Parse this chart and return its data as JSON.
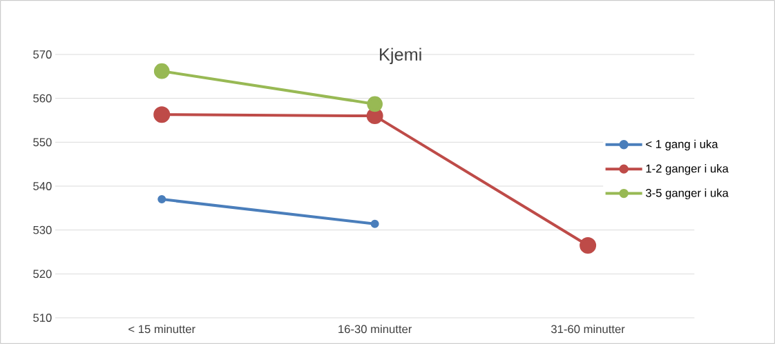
{
  "chart_data": {
    "type": "line",
    "title": "Kjemi",
    "categories": [
      "< 15 minutter",
      "16-30 minutter",
      "31-60 minutter"
    ],
    "series": [
      {
        "name": "< 1 gang i uka",
        "color": "#4a7ebb",
        "values": [
          537.0,
          531.4,
          null
        ]
      },
      {
        "name": "1-2 ganger i uka",
        "color": "#be4b48",
        "values": [
          556.3,
          556.0,
          526.5
        ]
      },
      {
        "name": "3-5 ganger i uka",
        "color": "#98b954",
        "values": [
          566.2,
          558.7,
          null
        ]
      }
    ],
    "ylim": [
      510,
      570
    ],
    "yticks": [
      510,
      520,
      530,
      540,
      550,
      560,
      570
    ],
    "grid": "y",
    "legend": "right",
    "marker": "circle",
    "line_style": "solid"
  }
}
